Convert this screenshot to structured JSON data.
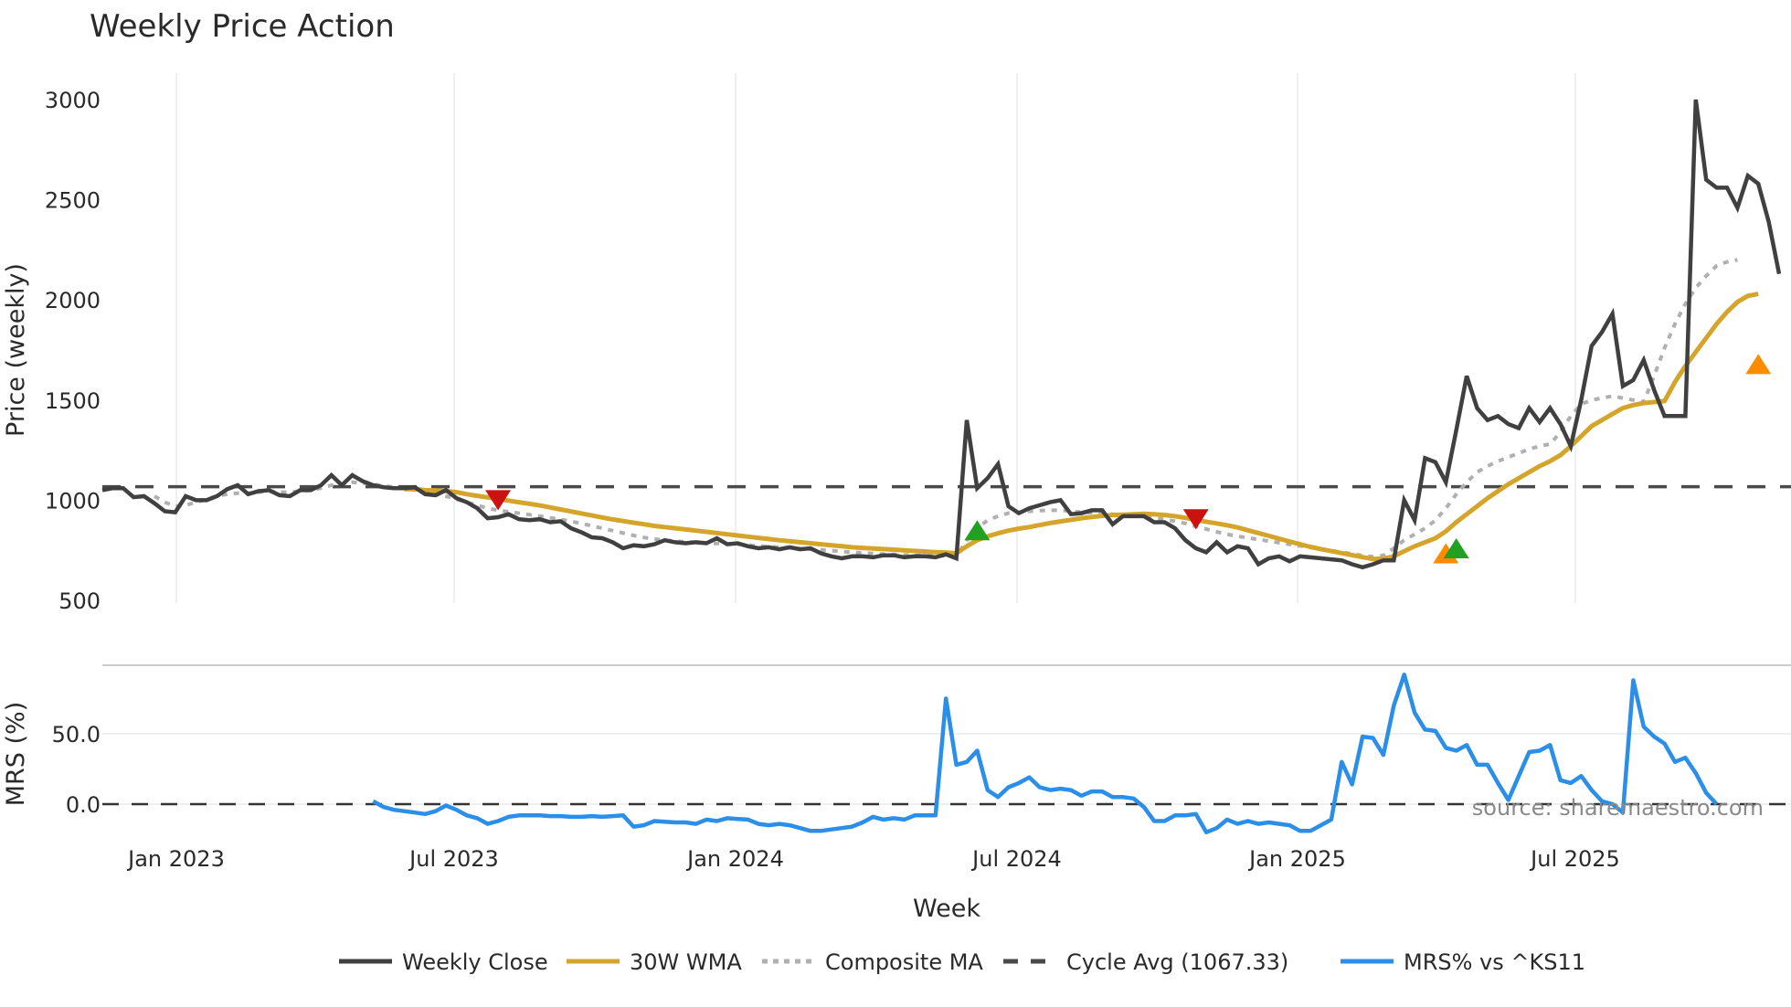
{
  "chart_data": [
    {
      "type": "line",
      "title": "Weekly Price Action",
      "xlabel": "Week",
      "ylabel": "Price (weekly)",
      "ylim": [
        500,
        3050
      ],
      "yticks": [
        "500",
        "1000",
        "1500",
        "2000",
        "2500",
        "3000"
      ],
      "xticks": [
        "Jan 2023",
        "Jul 2023",
        "Jan 2024",
        "Jul 2024",
        "Jan 2025",
        "Jul 2025"
      ],
      "grid": true,
      "x_start": "2022-11-28",
      "x_step_days": 7,
      "series": [
        {
          "name": "Weekly Close",
          "color": "#404040",
          "values": [
            1050,
            1060,
            1060,
            1015,
            1020,
            985,
            945,
            940,
            1020,
            1000,
            1000,
            1020,
            1055,
            1075,
            1030,
            1045,
            1050,
            1025,
            1020,
            1050,
            1050,
            1075,
            1125,
            1075,
            1125,
            1095,
            1075,
            1065,
            1060,
            1060,
            1065,
            1030,
            1025,
            1050,
            1010,
            990,
            960,
            910,
            915,
            930,
            905,
            900,
            905,
            890,
            895,
            860,
            840,
            815,
            810,
            790,
            760,
            775,
            770,
            780,
            800,
            790,
            785,
            790,
            785,
            810,
            780,
            785,
            770,
            760,
            765,
            755,
            765,
            755,
            760,
            735,
            720,
            710,
            720,
            720,
            715,
            725,
            725,
            715,
            720,
            720,
            715,
            730,
            710,
            1400,
            1060,
            1110,
            1180,
            970,
            935,
            960,
            975,
            990,
            1000,
            930,
            935,
            950,
            950,
            880,
            920,
            920,
            920,
            890,
            890,
            860,
            800,
            760,
            740,
            790,
            740,
            770,
            760,
            680,
            710,
            720,
            695,
            720,
            715,
            710,
            705,
            700,
            680,
            665,
            680,
            700,
            700,
            1000,
            900,
            1210,
            1190,
            1090,
            1350,
            1620,
            1460,
            1400,
            1420,
            1380,
            1360,
            1460,
            1390,
            1460,
            1380,
            1270,
            1500,
            1770,
            1840,
            1930,
            1570,
            1600,
            1700,
            1550,
            1420,
            1420,
            1420,
            3000,
            2600,
            2560,
            2560,
            2460,
            2620,
            2580,
            2390,
            2130
          ]
        },
        {
          "name": "30W WMA",
          "color": "#d4a52a",
          "values": [
            null,
            null,
            null,
            null,
            null,
            null,
            null,
            null,
            null,
            null,
            null,
            null,
            null,
            null,
            null,
            null,
            null,
            null,
            null,
            null,
            null,
            null,
            null,
            null,
            null,
            null,
            null,
            null,
            null,
            1055,
            1055,
            1050,
            1048,
            1046,
            1040,
            1030,
            1022,
            1014,
            1006,
            998,
            990,
            982,
            974,
            964,
            954,
            944,
            934,
            924,
            914,
            904,
            896,
            888,
            880,
            872,
            866,
            860,
            854,
            848,
            842,
            836,
            830,
            824,
            818,
            812,
            806,
            800,
            795,
            790,
            785,
            780,
            775,
            770,
            765,
            762,
            759,
            756,
            753,
            750,
            747,
            744,
            741,
            738,
            735,
            770,
            800,
            820,
            835,
            848,
            858,
            866,
            876,
            886,
            894,
            902,
            910,
            916,
            922,
            926,
            928,
            930,
            932,
            930,
            926,
            920,
            912,
            902,
            893,
            884,
            875,
            864,
            850,
            836,
            822,
            808,
            794,
            780,
            767,
            756,
            746,
            736,
            726,
            716,
            706,
            708,
            720,
            745,
            770,
            790,
            810,
            845,
            890,
            930,
            970,
            1010,
            1045,
            1080,
            1110,
            1140,
            1170,
            1195,
            1225,
            1270,
            1320,
            1370,
            1400,
            1430,
            1460,
            1475,
            1485,
            1490,
            1495,
            1590,
            1670,
            1740,
            1810,
            1880,
            1940,
            1990,
            2020,
            2030
          ]
        },
        {
          "name": "Composite MA",
          "color": "#b0b0b0",
          "values": [
            null,
            null,
            null,
            null,
            null,
            1020,
            990,
            970,
            975,
            990,
            1005,
            1020,
            1030,
            1035,
            1035,
            1040,
            1045,
            1040,
            1040,
            1045,
            1050,
            1060,
            1075,
            1080,
            1090,
            1085,
            1080,
            1072,
            1065,
            1058,
            1050,
            1040,
            1030,
            1020,
            1005,
            990,
            975,
            960,
            950,
            942,
            935,
            928,
            920,
            912,
            904,
            894,
            884,
            872,
            860,
            848,
            836,
            824,
            814,
            806,
            800,
            796,
            792,
            790,
            786,
            784,
            782,
            780,
            776,
            772,
            768,
            765,
            762,
            758,
            755,
            752,
            748,
            744,
            740,
            737,
            734,
            731,
            729,
            727,
            725,
            724,
            723,
            722,
            720,
            800,
            860,
            900,
            920,
            935,
            940,
            945,
            948,
            950,
            950,
            945,
            940,
            938,
            935,
            930,
            926,
            922,
            918,
            912,
            904,
            895,
            884,
            870,
            856,
            842,
            830,
            820,
            812,
            804,
            796,
            788,
            780,
            772,
            764,
            756,
            748,
            740,
            732,
            724,
            718,
            724,
            760,
            800,
            830,
            860,
            900,
            960,
            1030,
            1090,
            1140,
            1170,
            1195,
            1215,
            1235,
            1255,
            1270,
            1280,
            1340,
            1420,
            1480,
            1500,
            1510,
            1520,
            1510,
            1500,
            1490,
            1620,
            1760,
            1880,
            1980,
            2060,
            2120,
            2170,
            2190,
            2200
          ]
        },
        {
          "name": "Cycle Avg (1067.33)",
          "color": "#4a4a4a",
          "constant": 1067.33
        }
      ],
      "markers": [
        {
          "type": "sell-triangle-down",
          "color": "#cc1111",
          "week_index": 38,
          "value": 1000
        },
        {
          "type": "buy-triangle-up",
          "color": "#22a022",
          "week_index": 84,
          "value": 850
        },
        {
          "type": "sell-triangle-down",
          "color": "#cc1111",
          "week_index": 105,
          "value": 905
        },
        {
          "type": "orange-triangle-up",
          "color": "#ff8c00",
          "week_index": 129,
          "value": 735
        },
        {
          "type": "buy-triangle-up",
          "color": "#22a022",
          "week_index": 130,
          "value": 760
        },
        {
          "type": "orange-triangle-up",
          "color": "#ff8c00",
          "week_index": 159,
          "value": 1680
        }
      ]
    },
    {
      "type": "line",
      "ylabel": "MRS (%)",
      "yticks": [
        "0.0",
        "50.0"
      ],
      "xlabel": "Week",
      "series": [
        {
          "name": "MRS% vs ^KS11",
          "color": "#2b8ee8",
          "start_index": 26,
          "values": [
            2,
            -2,
            -4,
            -5,
            -6,
            -7,
            -5,
            -1,
            -4,
            -8,
            -10,
            -14,
            -12,
            -9,
            -8,
            -8,
            -8,
            -8.5,
            -8.5,
            -9,
            -9,
            -8.5,
            -9,
            -8.5,
            -8,
            -16,
            -15,
            -12,
            -12.5,
            -13,
            -13,
            -14,
            -11,
            -12,
            -10,
            -10.5,
            -11,
            -14,
            -15,
            -14,
            -15,
            -17,
            -19,
            -19,
            -18,
            -17,
            -16,
            -13,
            -9,
            -11,
            -10,
            -11,
            -8,
            -8,
            -8,
            75,
            28,
            30,
            38,
            10,
            5,
            12,
            15,
            19,
            12,
            10,
            11,
            10,
            6,
            9,
            9,
            5,
            5,
            4,
            -2,
            -12,
            -12,
            -8,
            -8,
            -7,
            -20,
            -17,
            -11,
            -14,
            -12,
            -14,
            -13,
            -14,
            -15,
            -19,
            -19,
            -15,
            -11,
            30,
            14,
            48,
            47,
            35,
            70,
            92,
            65,
            53,
            52,
            40,
            38,
            42,
            28,
            28,
            15,
            3,
            20,
            37,
            38,
            42,
            17,
            15,
            20,
            10,
            2,
            0,
            -6,
            88,
            55,
            48,
            43,
            30,
            33,
            22,
            8,
            0
          ],
          "baseline": 0
        }
      ]
    }
  ],
  "legend": {
    "items": [
      {
        "label": "Weekly Close",
        "color": "#404040",
        "style": "solid"
      },
      {
        "label": "30W WMA",
        "color": "#d4a52a",
        "style": "solid"
      },
      {
        "label": "Composite MA",
        "color": "#b0b0b0",
        "style": "dotted"
      },
      {
        "label": "Cycle Avg (1067.33)",
        "color": "#4a4a4a",
        "style": "dashed"
      },
      {
        "label": "MRS% vs ^KS11",
        "color": "#2b8ee8",
        "style": "solid"
      }
    ]
  },
  "watermark": "source: sharemaestro.com"
}
